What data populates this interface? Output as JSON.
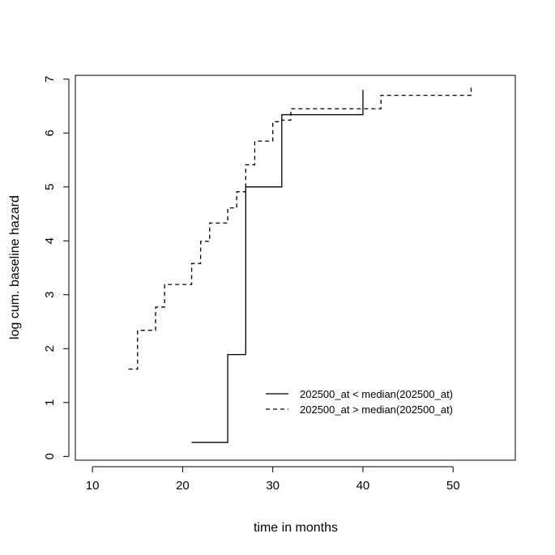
{
  "chart_data": {
    "type": "line",
    "title": "",
    "xlabel": "time in months",
    "ylabel": "log cum. baseline hazard",
    "xlim": [
      8.1,
      56.9
    ],
    "ylim": [
      -0.07,
      7.07
    ],
    "xticks": [
      10,
      20,
      30,
      40,
      50
    ],
    "yticks": [
      0,
      1,
      2,
      3,
      4,
      5,
      6,
      7
    ],
    "grid": false,
    "legend_position": "bottom-right",
    "series": [
      {
        "name": "202500_at < median(202500_at)",
        "line_style": "solid",
        "color": "#000000",
        "step_points": [
          [
            21,
            0.26
          ],
          [
            25,
            0.26
          ],
          [
            25,
            1.89
          ],
          [
            27,
            1.89
          ],
          [
            27,
            5.0
          ],
          [
            31,
            5.0
          ],
          [
            31,
            6.34
          ],
          [
            40,
            6.34
          ],
          [
            40,
            6.8
          ]
        ]
      },
      {
        "name": "202500_at > median(202500_at)",
        "line_style": "dashed",
        "color": "#000000",
        "step_points": [
          [
            14,
            1.62
          ],
          [
            15,
            1.62
          ],
          [
            15,
            2.34
          ],
          [
            17,
            2.34
          ],
          [
            17,
            2.77
          ],
          [
            18,
            2.77
          ],
          [
            18,
            3.19
          ],
          [
            21,
            3.19
          ],
          [
            21,
            3.58
          ],
          [
            22,
            3.58
          ],
          [
            22,
            3.99
          ],
          [
            23,
            3.99
          ],
          [
            23,
            4.33
          ],
          [
            25,
            4.33
          ],
          [
            25,
            4.61
          ],
          [
            26,
            4.61
          ],
          [
            26,
            4.91
          ],
          [
            27,
            4.91
          ],
          [
            27,
            5.41
          ],
          [
            28,
            5.41
          ],
          [
            28,
            5.85
          ],
          [
            30,
            5.85
          ],
          [
            30,
            6.21
          ],
          [
            31,
            6.21
          ],
          [
            31,
            6.24
          ],
          [
            32,
            6.24
          ],
          [
            32,
            6.45
          ],
          [
            42,
            6.45
          ],
          [
            42,
            6.7
          ],
          [
            52,
            6.7
          ],
          [
            52,
            6.88
          ]
        ]
      }
    ]
  }
}
